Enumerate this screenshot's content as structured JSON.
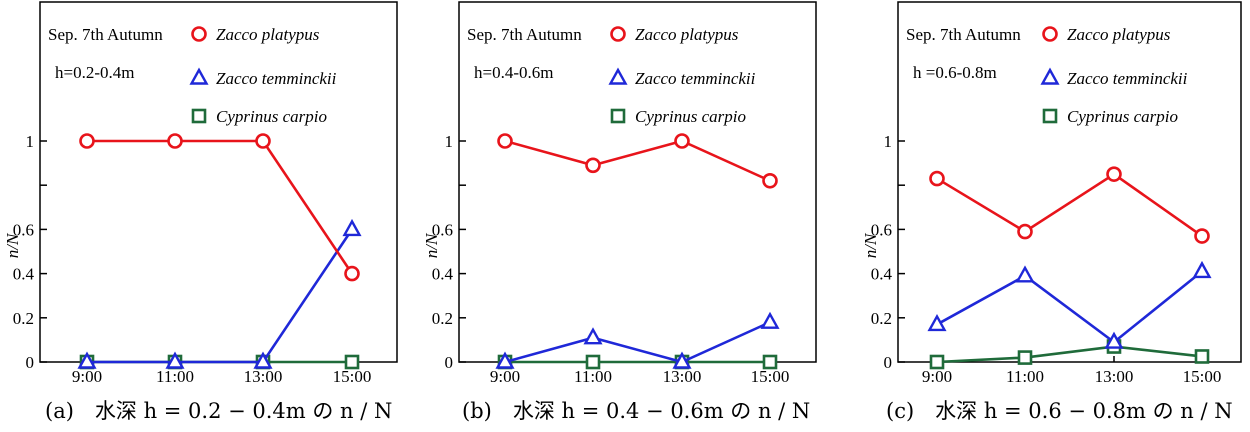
{
  "chart_data": [
    {
      "type": "line",
      "caption": "(a)　水深 h = 0.2 − 0.4m の n / N",
      "annotation_date": "Sep. 7th Autumn",
      "annotation_depth": "h=0.2-0.4m",
      "ylabel": "n/N",
      "categories": [
        "9:00",
        "11:00",
        "13:00",
        "15:00"
      ],
      "yticks": [
        "0",
        "0.2",
        "0.4",
        "0.6",
        "1"
      ],
      "ylim": [
        0,
        1.0
      ],
      "grid": false,
      "legend_position": "top-right",
      "series": [
        {
          "name": "Zacco platypus",
          "marker": "circle",
          "color": "#e8141b",
          "values": [
            1.0,
            1.0,
            1.0,
            0.4
          ]
        },
        {
          "name": "Zacco temminckii",
          "marker": "triangle",
          "color": "#1f28d8",
          "values": [
            0.0,
            0.0,
            0.0,
            0.6
          ]
        },
        {
          "name": "Cyprinus carpio",
          "marker": "square",
          "color": "#1f6b3a",
          "values": [
            0.0,
            0.0,
            0.0,
            0.0
          ]
        }
      ]
    },
    {
      "type": "line",
      "caption": "(b)　水深 h = 0.4 − 0.6m の n / N",
      "annotation_date": "Sep. 7th Autumn",
      "annotation_depth": "h=0.4-0.6m",
      "ylabel": "n/N",
      "categories": [
        "9:00",
        "11:00",
        "13:00",
        "15:00"
      ],
      "yticks": [
        "0",
        "0.2",
        "0.4",
        "0.6",
        "1"
      ],
      "ylim": [
        0,
        1.0
      ],
      "grid": false,
      "legend_position": "top-right",
      "series": [
        {
          "name": "Zacco platypus",
          "marker": "circle",
          "color": "#e8141b",
          "values": [
            1.0,
            0.89,
            1.0,
            0.82
          ]
        },
        {
          "name": "Zacco temminckii",
          "marker": "triangle",
          "color": "#1f28d8",
          "values": [
            0.0,
            0.11,
            0.0,
            0.18
          ]
        },
        {
          "name": "Cyprinus carpio",
          "marker": "square",
          "color": "#1f6b3a",
          "values": [
            0.0,
            0.0,
            0.0,
            0.0
          ]
        }
      ]
    },
    {
      "type": "line",
      "caption": "(c)　水深 h = 0.6 − 0.8m の n / N",
      "annotation_date": "Sep. 7th Autumn",
      "annotation_depth": "h =0.6-0.8m",
      "ylabel": "n/N",
      "categories": [
        "9:00",
        "11:00",
        "13:00",
        "15:00"
      ],
      "yticks": [
        "0",
        "0.2",
        "0.4",
        "0.6",
        "1"
      ],
      "ylim": [
        0,
        1.0
      ],
      "grid": false,
      "legend_position": "top-right",
      "series": [
        {
          "name": "Zacco platypus",
          "marker": "circle",
          "color": "#e8141b",
          "values": [
            0.83,
            0.59,
            0.85,
            0.57
          ]
        },
        {
          "name": "Zacco temminckii",
          "marker": "triangle",
          "color": "#1f28d8",
          "values": [
            0.17,
            0.39,
            0.09,
            0.41
          ]
        },
        {
          "name": "Cyprinus carpio",
          "marker": "square",
          "color": "#1f6b3a",
          "values": [
            0.0,
            0.02,
            0.07,
            0.025
          ]
        }
      ]
    }
  ]
}
